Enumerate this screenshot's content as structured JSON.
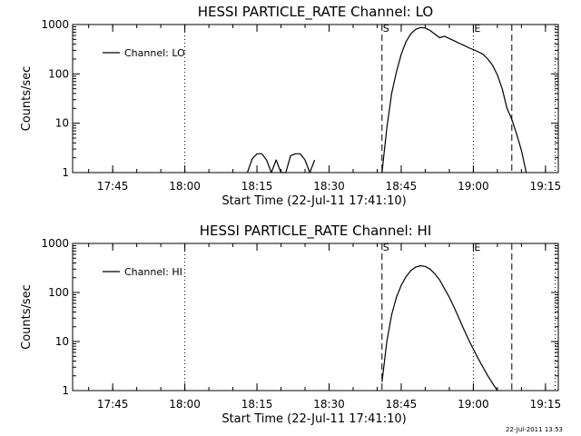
{
  "footer_timestamp": "22-Jul-2011 13:53",
  "chart_data": [
    {
      "type": "line",
      "title": "HESSI PARTICLE_RATE Channel: LO",
      "xlabel": "Start Time (22-Jul-11 17:41:10)",
      "ylabel": "Counts/sec",
      "yscale": "log",
      "ylim": [
        1,
        1000
      ],
      "xlim_minutes": [
        -4.5,
        96.5
      ],
      "x_ticks": [
        "17:45",
        "18:00",
        "18:15",
        "18:30",
        "18:45",
        "19:00",
        "19:15"
      ],
      "y_ticks": [
        "1",
        "10",
        "100",
        "1000"
      ],
      "legend": {
        "entry": "Channel: LO",
        "placement": "top-left"
      },
      "markers": [
        {
          "label": "S",
          "time": "18:41",
          "style": "dashed"
        },
        {
          "label": "E",
          "time": "19:00",
          "style": "dotted"
        }
      ],
      "extra_lines": [
        {
          "time": "18:00",
          "style": "dotted"
        },
        {
          "time": "19:08",
          "style": "dashed"
        },
        {
          "time": "19:17",
          "style": "dotted"
        }
      ],
      "series": [
        {
          "name": "Channel: LO",
          "segments": [
            [
              [
                "18:13",
                1.0
              ],
              [
                "18:14",
                1.9
              ],
              [
                "18:15",
                2.4
              ],
              [
                "18:16",
                2.4
              ],
              [
                "18:17",
                1.8
              ],
              [
                "18:18",
                1.0
              ],
              [
                "18:19",
                1.8
              ],
              [
                "18:20",
                1.0
              ],
              [
                "18:21",
                1.0
              ],
              [
                "18:22",
                2.2
              ],
              [
                "18:23",
                2.4
              ],
              [
                "18:24",
                2.4
              ],
              [
                "18:25",
                1.8
              ],
              [
                "18:26",
                1.0
              ],
              [
                "18:27",
                1.8
              ]
            ],
            [
              [
                "18:41",
                1.0
              ],
              [
                "18:42",
                8
              ],
              [
                "18:43",
                40
              ],
              [
                "18:44",
                110
              ],
              [
                "18:45",
                250
              ],
              [
                "18:46",
                450
              ],
              [
                "18:47",
                650
              ],
              [
                "18:48",
                800
              ],
              [
                "18:49",
                870
              ],
              [
                "18:50",
                850
              ],
              [
                "18:51",
                760
              ],
              [
                "18:52",
                640
              ],
              [
                "18:53",
                540
              ],
              [
                "18:54",
                580
              ],
              [
                "18:55",
                520
              ],
              [
                "18:56",
                470
              ],
              [
                "18:57",
                420
              ],
              [
                "18:58",
                380
              ],
              [
                "18:59",
                340
              ],
              [
                "19:00",
                310
              ],
              [
                "19:01",
                280
              ],
              [
                "19:02",
                250
              ],
              [
                "19:03",
                200
              ],
              [
                "19:04",
                150
              ],
              [
                "19:05",
                95
              ],
              [
                "19:06",
                50
              ],
              [
                "19:07",
                20
              ],
              [
                "19:08",
                12
              ],
              [
                "19:09",
                6
              ],
              [
                "19:10",
                2.8
              ],
              [
                "19:11",
                1.0
              ]
            ]
          ]
        }
      ]
    },
    {
      "type": "line",
      "title": "HESSI PARTICLE_RATE Channel: HI",
      "xlabel": "Start Time (22-Jul-11 17:41:10)",
      "ylabel": "Counts/sec",
      "yscale": "log",
      "ylim": [
        1,
        1000
      ],
      "xlim_minutes": [
        -4.5,
        96.5
      ],
      "x_ticks": [
        "17:45",
        "18:00",
        "18:15",
        "18:30",
        "18:45",
        "19:00",
        "19:15"
      ],
      "y_ticks": [
        "1",
        "10",
        "100",
        "1000"
      ],
      "legend": {
        "entry": "Channel: HI",
        "placement": "top-left"
      },
      "markers": [
        {
          "label": "S",
          "time": "18:41",
          "style": "dashed"
        },
        {
          "label": "E",
          "time": "19:00",
          "style": "dotted"
        }
      ],
      "extra_lines": [
        {
          "time": "18:00",
          "style": "dotted"
        },
        {
          "time": "19:08",
          "style": "dashed"
        },
        {
          "time": "19:17",
          "style": "dotted"
        }
      ],
      "series": [
        {
          "name": "Channel: HI",
          "segments": [
            [
              [
                "18:41",
                1.5
              ],
              [
                "18:42",
                10
              ],
              [
                "18:43",
                35
              ],
              [
                "18:44",
                80
              ],
              [
                "18:45",
                140
              ],
              [
                "18:46",
                210
              ],
              [
                "18:47",
                280
              ],
              [
                "18:48",
                330
              ],
              [
                "18:49",
                350
              ],
              [
                "18:50",
                340
              ],
              [
                "18:51",
                300
              ],
              [
                "18:52",
                240
              ],
              [
                "18:53",
                180
              ],
              [
                "18:54",
                120
              ],
              [
                "18:55",
                80
              ],
              [
                "18:56",
                50
              ],
              [
                "18:57",
                30
              ],
              [
                "18:58",
                18
              ],
              [
                "18:59",
                11
              ],
              [
                "19:00",
                7
              ],
              [
                "19:01",
                4.5
              ],
              [
                "19:02",
                3
              ],
              [
                "19:03",
                2
              ],
              [
                "19:04",
                1.4
              ],
              [
                "19:05",
                1.0
              ]
            ]
          ]
        }
      ]
    }
  ]
}
